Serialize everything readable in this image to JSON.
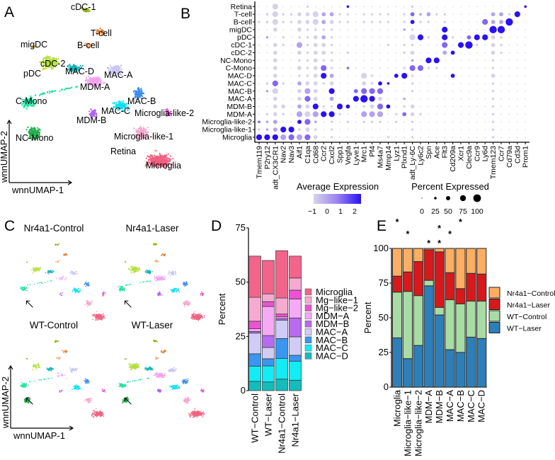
{
  "panel_labels": {
    "A": "A",
    "B": "B",
    "C": "C",
    "D": "D",
    "E": "E"
  },
  "chart_data": [
    {
      "type": "scatter",
      "panel": "A",
      "xlabel": "wnnUMAP-1",
      "ylabel": "wnnUMAP-2",
      "clusters": [
        {
          "name": "cDC-1",
          "color": "#8ab012"
        },
        {
          "name": "T-cell",
          "color": "#e0843a"
        },
        {
          "name": "B-cell",
          "color": "#f2b482"
        },
        {
          "name": "migDC",
          "color": "#c2a21a"
        },
        {
          "name": "cDC-2",
          "color": "#b4e040"
        },
        {
          "name": "pDC",
          "color": "#e8d21a"
        },
        {
          "name": "MAC-D",
          "color": "#14b4b8"
        },
        {
          "name": "MAC-A",
          "color": "#c8c6f4"
        },
        {
          "name": "MDM-A",
          "color": "#f2a2f0"
        },
        {
          "name": "C-Mono",
          "color": "#22e2a4"
        },
        {
          "name": "NC-Mono",
          "color": "#1eae4c"
        },
        {
          "name": "MDM-B",
          "color": "#b262f2"
        },
        {
          "name": "MAC-C",
          "color": "#12e0f2"
        },
        {
          "name": "MAC-B",
          "color": "#3a8ff0"
        },
        {
          "name": "Microglia-like-2",
          "color": "#e64ed2"
        },
        {
          "name": "Microglia-like-1",
          "color": "#f4a6ca"
        },
        {
          "name": "Retina",
          "color": "#ff9a9a"
        },
        {
          "name": "Microglia",
          "color": "#f0607f"
        }
      ]
    },
    {
      "type": "heatmap",
      "panel": "B",
      "subtype": "dotplot",
      "rows": [
        "Retina",
        "T-cell",
        "B-cell",
        "migDC",
        "pDC",
        "cDC-1",
        "cDC-2",
        "NC-Mono",
        "C-Mono",
        "MAC-D",
        "MAC-C",
        "MAC-B",
        "MAC-A",
        "MDM-B",
        "MDM-A",
        "Microglia-like-2",
        "Microglia-like-1",
        "Microglia"
      ],
      "genes": [
        "Tmem119",
        "P2ry12",
        "adt_CX3CR1",
        "Nav2",
        "Nav3",
        "Aif1",
        "C1qa",
        "Cd68",
        "Ccr2",
        "Cxcl2",
        "Spp1",
        "Vegfa",
        "Lyve1",
        "Mrc1",
        "Pf4",
        "Ms4a7",
        "Mmp14",
        "Lyz1",
        "Plxnd1",
        "adt_Ly-6C",
        "Ly6c2",
        "Spn",
        "Ace",
        "Flt3",
        "Cd209a",
        "Xcr1",
        "Clec9a",
        "Ccr9",
        "Ly6d",
        "Tmem123",
        "Ccr7",
        "Cd79a",
        "Cd3d",
        "Prom1"
      ],
      "percent_expressed_level_0to4": [
        "0030001000010000000100000000000001",
        "0131122322110111101212110000022130",
        "1131122322110111101211010000322400",
        "0020021111000000001100030000044000",
        "0101011221000000000331031023321000",
        "0021031221000000101100030341021000",
        "0020021221010000001200022000021000",
        "0020011211000000000103300000010000",
        "0020021231010000001331100000010000",
        "0020011232000310023100002000020000",
        "0131022212000212100100000000010000",
        "0130023203002333000100000000010000",
        "0020023202003432001000000000010000",
        "0022022311320123201200000000010000",
        "0121033333100333012210000000010000",
        "1120023101010111010100000000010000",
        "1123312101000000000100000000010000",
        "3333333201000000100100000000010000"
      ],
      "average_expression_level_0to3": [
        "0000000000030000000000000000000003",
        "0000000011000000000211000000011030",
        "0000000010000000000300000000211300",
        "0000000000000000001000030000033000",
        "0100000010000000000030030023300000",
        "0000010000000000000000020330000000",
        "0000000000000000000000013000000000",
        "0000000000000000000103300000000000",
        "0000000020020000000220000000000000",
        "0000000031000000033000003000000000",
        "0020010000000003300000000000000000",
        "0100001003002222000000000000000000",
        "0000002001003330001000000000000000",
        "0000010300330002300000000000000000",
        "0000010133000111002000000000000000",
        "2110032100000000000000000000000000",
        "0113300000000000000000000000000000",
        "3331212000000000000000000000000000"
      ],
      "legend_color": {
        "title": "Average Expression",
        "ticks": [
          "−1",
          "0",
          "1",
          "2"
        ],
        "low": "#d8d4e8",
        "high": "#2a10f4"
      },
      "legend_size": {
        "title": "Percent Expressed",
        "ticks": [
          "0",
          "25",
          "50",
          "75",
          "100"
        ]
      }
    },
    {
      "type": "scatter",
      "panel": "C",
      "panels": [
        "Nr4a1-Control",
        "Nr4a1-Laser",
        "WT-Control",
        "WT-Laser"
      ],
      "xlabel": "wnnUMAP-1",
      "ylabel": "wnnUMAP-2",
      "annotation": "arrow marks NC-Mono region"
    },
    {
      "type": "bar",
      "panel": "D",
      "stacked": true,
      "categories": [
        "WT−Control",
        "WT−Laser",
        "Nr4a1−Control",
        "Nr4a1−Laser"
      ],
      "ylabel": "Percent",
      "ylim": [
        0,
        75
      ],
      "yticks": [
        "0",
        "25",
        "50",
        "75"
      ],
      "legend_position": "right",
      "series": [
        {
          "name": "MAC−D",
          "color": "#14bcbc",
          "values": [
            4.3,
            4.0,
            5.3,
            4.8
          ]
        },
        {
          "name": "MAC−C",
          "color": "#12ecf4",
          "values": [
            6.9,
            7.4,
            9.5,
            8.8
          ]
        },
        {
          "name": "MAC−B",
          "color": "#3a96f2",
          "values": [
            5.8,
            3.3,
            9.2,
            2.7
          ]
        },
        {
          "name": "MAC−A",
          "color": "#d0ccf6",
          "values": [
            9.5,
            5.2,
            8.5,
            8.5
          ]
        },
        {
          "name": "MDM−B",
          "color": "#b86af0",
          "values": [
            0.8,
            5.5,
            0.7,
            8.7
          ]
        },
        {
          "name": "MDM−A",
          "color": "#f6aaf6",
          "values": [
            1.2,
            13.4,
            0.8,
            8.7
          ]
        },
        {
          "name": "Mg−like−2",
          "color": "#ee52d4",
          "values": [
            3.5,
            2.2,
            1.3,
            4.1
          ]
        },
        {
          "name": "Mg−like−1",
          "color": "#f6aad0",
          "values": [
            11.0,
            3.6,
            7.4,
            5.6
          ]
        },
        {
          "name": "Microglia",
          "color": "#f2648a",
          "values": [
            19.0,
            15.4,
            21.8,
            10.1
          ]
        }
      ]
    },
    {
      "type": "bar",
      "panel": "E",
      "stacked": true,
      "categories": [
        "Microglia",
        "Microglia−like−1",
        "Microglia−like−2",
        "MDM−A",
        "MDM−B",
        "MAC−A",
        "MAC−B",
        "MAC−C",
        "MAC−D"
      ],
      "ylabel": "Percent",
      "ylim": [
        0,
        100
      ],
      "yticks": [
        "0",
        "25",
        "50",
        "75",
        "100"
      ],
      "legend_position": "right",
      "series": [
        {
          "name": "WT−Laser",
          "color": "#2c7fb8",
          "values": [
            35.5,
            20.5,
            30,
            73,
            52,
            27,
            25,
            36,
            35
          ]
        },
        {
          "name": "WT−Control",
          "color": "#a8dca4",
          "values": [
            33,
            48.5,
            36,
            4,
            5.5,
            36,
            35,
            26,
            27
          ]
        },
        {
          "name": "Nr4a1−Laser",
          "color": "#d7191c",
          "values": [
            11.5,
            14,
            24.5,
            22,
            40,
            19.5,
            11,
            20,
            19.5
          ]
        },
        {
          "name": "Nr4a1−Control",
          "color": "#fdae61",
          "values": [
            20,
            17,
            9.5,
            1,
            2.5,
            17.5,
            29,
            18,
            18.5
          ]
        }
      ],
      "legend_order": [
        "Nr4a1−Control",
        "Nr4a1−Laser",
        "WT−Control",
        "WT−Laser"
      ],
      "significance": [
        {
          "category": "Microglia",
          "series": "Nr4a1−Control",
          "mark": "*",
          "color": "#b08050"
        },
        {
          "category": "Microglia−like−1",
          "series": "WT−Control",
          "mark": "*",
          "color": "#7a9a72"
        },
        {
          "category": "MDM−A",
          "series": "WT−Laser",
          "mark": "*",
          "color": "#3a5a80"
        },
        {
          "category": "MDM−B",
          "series": "Nr4a1−Laser",
          "mark": "*",
          "color": "#8b2222"
        },
        {
          "category": "MDM−B",
          "series": "WT−Laser",
          "mark": "*",
          "color": "#3a5a80"
        },
        {
          "category": "MAC−A",
          "series": "WT−Control",
          "mark": "*",
          "color": "#7a9a72"
        },
        {
          "category": "MAC−B",
          "series": "Nr4a1−Control",
          "mark": "*",
          "color": "#b08050"
        }
      ]
    }
  ]
}
